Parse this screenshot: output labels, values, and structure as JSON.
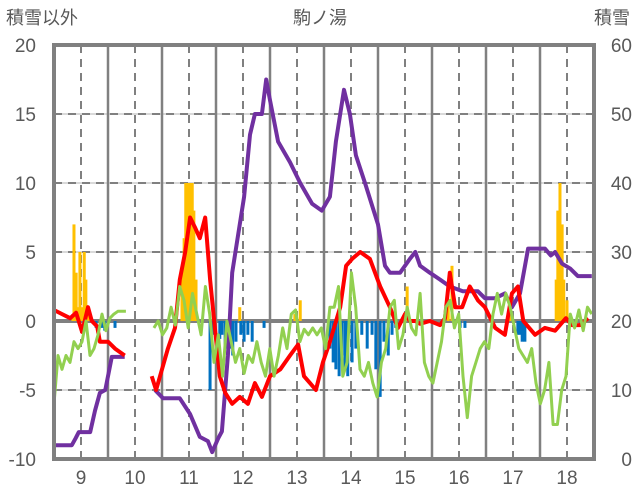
{
  "chart_data": {
    "type": "line",
    "title": "駒ノ湯",
    "ylabel_left": "積雪以外",
    "ylabel_right": "積雪",
    "xlim": [
      8.5,
      18.5
    ],
    "ylim_left": [
      -10,
      20
    ],
    "ylim_right": [
      0,
      60
    ],
    "x_ticks": [
      "9",
      "10",
      "11",
      "12",
      "13",
      "14",
      "15",
      "16",
      "17",
      "18"
    ],
    "y_left_ticks": [
      "-10",
      "-5",
      "0",
      "5",
      "10",
      "15",
      "20"
    ],
    "y_right_ticks": [
      "0",
      "10",
      "20",
      "30",
      "40",
      "50",
      "60"
    ],
    "grid": true,
    "colors": {
      "red": "#FF0000",
      "green": "#92D050",
      "purple": "#7030A0",
      "orange": "#FFC000",
      "blue": "#0070C0",
      "axis": "#808080"
    },
    "series": [
      {
        "name": "purple",
        "axis": "right",
        "color": "#7030A0",
        "segments": [
          [
            [
              8.5,
              2
            ],
            [
              8.83,
              2
            ],
            [
              8.9,
              3
            ],
            [
              8.96,
              3.9
            ],
            [
              9.17,
              3.9
            ],
            [
              9.26,
              7
            ],
            [
              9.35,
              9.6
            ],
            [
              9.45,
              10
            ],
            [
              9.57,
              14.8
            ],
            [
              9.81,
              14.8
            ]
          ],
          [
            [
              10.37,
              10
            ],
            [
              10.52,
              8.8
            ],
            [
              10.83,
              8.8
            ],
            [
              11.02,
              6.5
            ],
            [
              11.2,
              3.2
            ],
            [
              11.35,
              2.6
            ],
            [
              11.43,
              1
            ],
            [
              11.54,
              3
            ],
            [
              11.61,
              4
            ],
            [
              11.72,
              15
            ],
            [
              11.8,
              27
            ],
            [
              11.9,
              32
            ],
            [
              12.02,
              38
            ],
            [
              12.13,
              47
            ],
            [
              12.22,
              50
            ],
            [
              12.35,
              50
            ],
            [
              12.43,
              55
            ],
            [
              12.5,
              52
            ],
            [
              12.65,
              46
            ],
            [
              12.87,
              43
            ],
            [
              13.06,
              40
            ],
            [
              13.28,
              37
            ],
            [
              13.46,
              36
            ],
            [
              13.61,
              38
            ],
            [
              13.72,
              46
            ],
            [
              13.87,
              53.5
            ],
            [
              13.98,
              50
            ],
            [
              14.09,
              44
            ],
            [
              14.26,
              40
            ],
            [
              14.5,
              34
            ],
            [
              14.63,
              28
            ],
            [
              14.72,
              27
            ],
            [
              14.91,
              27
            ],
            [
              15.09,
              29
            ],
            [
              15.19,
              30
            ],
            [
              15.28,
              28
            ],
            [
              15.46,
              27
            ],
            [
              15.65,
              26
            ],
            [
              15.83,
              25
            ],
            [
              16.07,
              24.3
            ],
            [
              16.35,
              24.3
            ],
            [
              16.48,
              23.3
            ],
            [
              16.67,
              23.3
            ],
            [
              16.85,
              24
            ],
            [
              16.98,
              22
            ],
            [
              17.13,
              24
            ],
            [
              17.28,
              30.5
            ],
            [
              17.59,
              30.5
            ],
            [
              17.7,
              29.5
            ],
            [
              17.78,
              30
            ],
            [
              17.91,
              28.3
            ],
            [
              18.06,
              27.6
            ],
            [
              18.2,
              26.5
            ],
            [
              18.46,
              26.5
            ]
          ]
        ]
      },
      {
        "name": "red",
        "axis": "left",
        "color": "#FF0000",
        "segments": [
          [
            [
              8.5,
              0.8
            ],
            [
              8.65,
              0.5
            ],
            [
              8.8,
              0.2
            ],
            [
              8.91,
              0.6
            ],
            [
              9.02,
              -0.8
            ],
            [
              9.13,
              1
            ],
            [
              9.2,
              0
            ],
            [
              9.3,
              -0.4
            ],
            [
              9.35,
              -1.5
            ],
            [
              9.5,
              -1.5
            ],
            [
              9.63,
              -2
            ],
            [
              9.81,
              -2.5
            ]
          ],
          [
            [
              10.31,
              -4
            ],
            [
              10.39,
              -5
            ],
            [
              10.5,
              -3.5
            ],
            [
              10.61,
              -2
            ],
            [
              10.74,
              -0.5
            ],
            [
              10.83,
              3
            ],
            [
              10.93,
              5
            ],
            [
              11.02,
              7.5
            ],
            [
              11.11,
              6.8
            ],
            [
              11.2,
              6
            ],
            [
              11.3,
              7.5
            ],
            [
              11.39,
              3
            ],
            [
              11.48,
              -0.5
            ],
            [
              11.57,
              -4
            ],
            [
              11.67,
              -5.2
            ],
            [
              11.8,
              -6
            ],
            [
              11.94,
              -5.5
            ],
            [
              12.09,
              -6
            ],
            [
              12.22,
              -4.5
            ],
            [
              12.35,
              -5.5
            ],
            [
              12.5,
              -4
            ],
            [
              12.69,
              -3.5
            ],
            [
              12.87,
              -2.5
            ],
            [
              13.02,
              -1.7
            ],
            [
              13.13,
              -4
            ],
            [
              13.24,
              -4.5
            ],
            [
              13.35,
              -5
            ],
            [
              13.48,
              -3
            ],
            [
              13.61,
              -1.5
            ],
            [
              13.8,
              1
            ],
            [
              13.91,
              4
            ],
            [
              14.02,
              4.5
            ],
            [
              14.17,
              5
            ],
            [
              14.35,
              4.5
            ],
            [
              14.54,
              2.5
            ],
            [
              14.72,
              1
            ],
            [
              14.87,
              -0.5
            ],
            [
              15.0,
              0.5
            ],
            [
              15.09,
              0
            ],
            [
              15.19,
              0
            ],
            [
              15.28,
              -0.2
            ],
            [
              15.46,
              0
            ],
            [
              15.65,
              -0.3
            ],
            [
              15.74,
              0.2
            ],
            [
              15.83,
              3.5
            ],
            [
              15.93,
              1
            ],
            [
              16.06,
              1
            ],
            [
              16.2,
              2.5
            ],
            [
              16.35,
              1.5
            ],
            [
              16.48,
              1
            ],
            [
              16.67,
              -0.5
            ],
            [
              16.85,
              -1
            ],
            [
              16.98,
              2
            ],
            [
              17.09,
              2.5
            ],
            [
              17.19,
              0
            ],
            [
              17.41,
              -1
            ],
            [
              17.59,
              -0.5
            ],
            [
              17.78,
              -0.7
            ],
            [
              17.98,
              0.2
            ],
            [
              18.09,
              -0.3
            ],
            [
              18.24,
              -0.3
            ],
            [
              18.39,
              0.2
            ]
          ]
        ]
      },
      {
        "name": "green",
        "axis": "left",
        "color": "#92D050",
        "step_segments": [
          {
            "start": 8.5,
            "step": 0.074,
            "values": [
              -6,
              -2.5,
              -3.5,
              -2.5,
              -3,
              -1.5,
              -2,
              -1.5,
              0,
              -2.5,
              -2,
              -1,
              0.5,
              -0.7,
              0.2,
              0.5,
              0.7,
              0.7,
              0.7
            ]
          },
          {
            "start": 10.35,
            "step": 0.0795,
            "values": [
              -0.5,
              0,
              -1,
              -0.5,
              1,
              -0.3,
              2.5,
              1.5,
              -0.5,
              2,
              0.5,
              -1,
              2.5,
              0.5,
              -3,
              -1,
              -4,
              0,
              -1.5,
              -3,
              -2,
              -3.8,
              -2.5,
              -3,
              -1.5,
              -3,
              -4,
              -2,
              -4,
              -2.5,
              -0.5,
              -2,
              0.5,
              0.8,
              -1.5,
              -0.6,
              -1,
              -0.5,
              -1,
              -0.5,
              -2,
              1,
              1,
              2.5,
              -4,
              -3,
              3.5,
              1,
              -3.5,
              -4,
              -3,
              -4.5,
              -5.5,
              -3,
              -2,
              1,
              1.5,
              -2,
              -1,
              1,
              -0.5,
              -1,
              2,
              -3,
              -4,
              -4.5,
              -3,
              -1.5,
              1,
              1.5,
              -0.5,
              0.5,
              -4,
              -7,
              -4,
              -3,
              -2,
              -1.5,
              -2,
              0.5,
              2,
              0.5,
              2,
              1,
              -0.5,
              -2,
              -2.5,
              -3,
              -2,
              -4.5,
              -6,
              -5,
              -3,
              -7.5,
              -7.5,
              -5,
              -4,
              0.5,
              -0.5,
              0.8,
              -0.7,
              1,
              0.5
            ]
          }
        ]
      }
    ],
    "bars": {
      "axis": "left",
      "points": [
        [
          8.85,
          0.5
        ],
        [
          8.87,
          7
        ],
        [
          8.91,
          3.5
        ],
        [
          8.94,
          1
        ],
        [
          8.98,
          5
        ],
        [
          9.02,
          1
        ],
        [
          9.06,
          5
        ],
        [
          9.09,
          3
        ],
        [
          9.13,
          0.5
        ],
        [
          9.28,
          -0.5
        ],
        [
          9.39,
          -0.5
        ],
        [
          9.44,
          -0.7
        ],
        [
          9.63,
          -0.5
        ],
        [
          10.87,
          4
        ],
        [
          10.91,
          6
        ],
        [
          10.94,
          10
        ],
        [
          10.98,
          10
        ],
        [
          11.02,
          10
        ],
        [
          11.06,
          10
        ],
        [
          11.09,
          8
        ],
        [
          11.13,
          3
        ],
        [
          11.39,
          -5
        ],
        [
          11.43,
          -1
        ],
        [
          11.57,
          -1.3
        ],
        [
          11.61,
          -1
        ],
        [
          11.67,
          -2
        ],
        [
          11.7,
          -1.5
        ],
        [
          11.76,
          -2
        ],
        [
          11.81,
          -2.5
        ],
        [
          11.87,
          -1.5
        ],
        [
          11.94,
          1
        ],
        [
          11.96,
          -1
        ],
        [
          12.02,
          -1.5
        ],
        [
          12.09,
          -1
        ],
        [
          12.17,
          -1.5
        ],
        [
          12.39,
          -0.5
        ],
        [
          12.96,
          0.5
        ],
        [
          13.06,
          1.5
        ],
        [
          13.61,
          -2
        ],
        [
          13.67,
          -3
        ],
        [
          13.72,
          -3.5
        ],
        [
          13.78,
          -4
        ],
        [
          13.83,
          -2.5
        ],
        [
          13.89,
          -3.5
        ],
        [
          13.94,
          -4
        ],
        [
          14.02,
          -3
        ],
        [
          14.09,
          -2
        ],
        [
          14.2,
          -1
        ],
        [
          14.3,
          -2
        ],
        [
          14.39,
          -1
        ],
        [
          14.46,
          -3.5
        ],
        [
          14.54,
          -5.5
        ],
        [
          14.61,
          -1.5
        ],
        [
          14.69,
          -2.5
        ],
        [
          14.76,
          -1
        ],
        [
          14.83,
          -0.5
        ],
        [
          15.04,
          2.5
        ],
        [
          15.8,
          1.5
        ],
        [
          15.87,
          4
        ],
        [
          16.02,
          -0.5
        ],
        [
          16.11,
          -0.5
        ],
        [
          16.94,
          1
        ],
        [
          17.09,
          -1
        ],
        [
          17.13,
          -1
        ],
        [
          17.17,
          -1.5
        ],
        [
          17.22,
          -1.5
        ],
        [
          17.8,
          3
        ],
        [
          17.83,
          8
        ],
        [
          17.87,
          10
        ],
        [
          17.91,
          7
        ],
        [
          17.94,
          3
        ],
        [
          18.0,
          1.5
        ]
      ]
    }
  }
}
